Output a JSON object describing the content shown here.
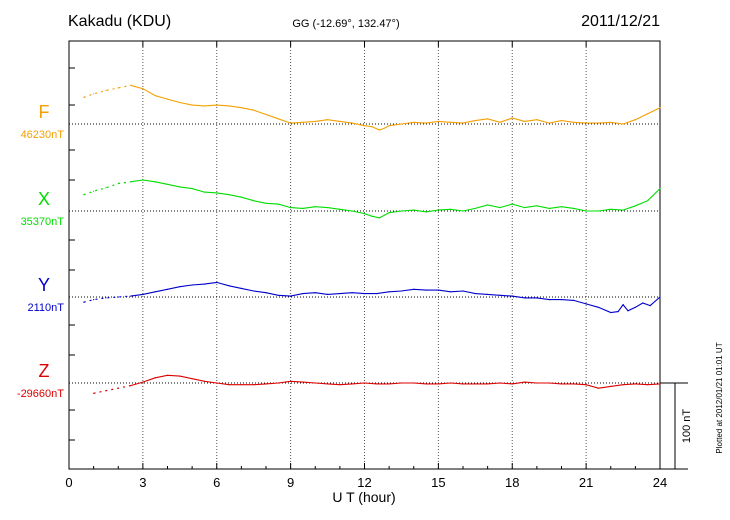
{
  "header": {
    "station": "Kakadu (KDU)",
    "coords": "GG (-12.69°, 132.47°)",
    "date": "2011/12/21"
  },
  "footer": {
    "plotted": "Plotted at 2012/01/21 01:01 UT"
  },
  "colors": {
    "F": "#f5a000",
    "X": "#00dd00",
    "Y": "#0000cc",
    "Z": "#dd0000",
    "axis": "#000000"
  },
  "chart_data": {
    "type": "line",
    "xlabel": "U T (hour)",
    "xlim": [
      0,
      24
    ],
    "x_ticks": [
      "0",
      "3",
      "6",
      "9",
      "12",
      "15",
      "18",
      "21",
      "24"
    ],
    "grid": "vertical dotted lines at every 3 hours; dotted baseline per component",
    "scale_bar": {
      "value": 100,
      "label": "100 nT"
    },
    "y_units": "nT offset from baseline",
    "series": [
      {
        "name": "F",
        "baseline_label": "46230nT",
        "x": [
          0.6,
          1.0,
          1.5,
          2.0,
          2.5,
          3.0,
          3.5,
          4.0,
          4.5,
          5.0,
          5.5,
          6.0,
          6.5,
          7.0,
          7.5,
          8.0,
          8.5,
          9.0,
          9.5,
          10.0,
          10.5,
          11.0,
          11.5,
          12.0,
          12.3,
          12.6,
          12.8,
          13.0,
          13.5,
          14.0,
          14.5,
          15.0,
          15.5,
          16.0,
          16.5,
          17.0,
          17.5,
          18.0,
          18.5,
          19.0,
          19.5,
          20.0,
          20.5,
          21.0,
          21.5,
          22.0,
          22.5,
          23.0,
          23.5,
          24.0
        ],
        "y": [
          31,
          35,
          39,
          42,
          45,
          41,
          33,
          29,
          25,
          22,
          21,
          22,
          21,
          19,
          16,
          11,
          6,
          1,
          2,
          3,
          5,
          3,
          1,
          -2,
          -3,
          -7,
          -5,
          -2,
          0,
          2,
          1,
          3,
          2,
          1,
          4,
          6,
          2,
          7,
          3,
          5,
          1,
          4,
          2,
          1,
          1,
          2,
          0,
          5,
          12,
          19
        ]
      },
      {
        "name": "X",
        "baseline_label": "35370nT",
        "x": [
          0.6,
          1.0,
          1.5,
          2.0,
          2.5,
          3.0,
          3.5,
          4.0,
          4.5,
          5.0,
          5.5,
          6.0,
          6.5,
          7.0,
          7.5,
          8.0,
          8.5,
          9.0,
          9.5,
          10.0,
          10.5,
          11.0,
          11.5,
          12.0,
          12.3,
          12.6,
          12.8,
          13.0,
          13.5,
          14.0,
          14.5,
          15.0,
          15.5,
          16.0,
          16.5,
          17.0,
          17.5,
          18.0,
          18.5,
          19.0,
          19.5,
          20.0,
          20.5,
          21.0,
          21.5,
          22.0,
          22.5,
          23.0,
          23.5,
          24.0
        ],
        "y": [
          19,
          23,
          27,
          32,
          34,
          36,
          34,
          31,
          28,
          26,
          22,
          21,
          19,
          16,
          12,
          9,
          8,
          4,
          3,
          5,
          4,
          2,
          0,
          -3,
          -6,
          -8,
          -5,
          -2,
          0,
          1,
          -1,
          1,
          2,
          0,
          3,
          7,
          4,
          8,
          4,
          6,
          3,
          5,
          3,
          0,
          0,
          2,
          1,
          6,
          12,
          26
        ]
      },
      {
        "name": "Y",
        "baseline_label": "2110nT",
        "x": [
          0.6,
          1.0,
          1.5,
          2.0,
          2.5,
          3.0,
          3.5,
          4.0,
          4.5,
          5.0,
          5.5,
          6.0,
          6.5,
          7.0,
          7.5,
          8.0,
          8.5,
          9.0,
          9.5,
          10.0,
          10.5,
          11.0,
          11.5,
          12.0,
          12.5,
          13.0,
          13.5,
          14.0,
          14.5,
          15.0,
          15.5,
          16.0,
          16.5,
          17.0,
          17.5,
          18.0,
          18.5,
          19.0,
          19.5,
          20.0,
          20.5,
          21.0,
          21.5,
          22.0,
          22.3,
          22.5,
          22.7,
          23.0,
          23.3,
          23.6,
          24.0
        ],
        "y": [
          -6,
          -3,
          -1,
          0,
          1,
          3,
          6,
          9,
          12,
          14,
          15,
          17,
          13,
          10,
          7,
          5,
          2,
          1,
          4,
          5,
          3,
          4,
          5,
          4,
          4,
          6,
          7,
          9,
          8,
          8,
          6,
          7,
          4,
          3,
          2,
          1,
          -1,
          -1,
          -3,
          -3,
          -4,
          -8,
          -12,
          -18,
          -17,
          -9,
          -16,
          -12,
          -7,
          -10,
          0
        ]
      },
      {
        "name": "Z",
        "baseline_label": "-29660nT",
        "x": [
          1.0,
          1.5,
          2.0,
          2.5,
          3.0,
          3.5,
          4.0,
          4.5,
          5.0,
          5.5,
          6.0,
          6.5,
          7.0,
          7.5,
          8.0,
          8.5,
          9.0,
          9.5,
          10.0,
          10.5,
          11.0,
          11.5,
          12.0,
          12.5,
          13.0,
          13.5,
          14.0,
          14.5,
          15.0,
          15.5,
          16.0,
          16.5,
          17.0,
          17.5,
          18.0,
          18.5,
          19.0,
          19.5,
          20.0,
          20.5,
          21.0,
          21.5,
          22.0,
          22.5,
          23.0,
          23.5,
          24.0
        ],
        "y": [
          -12,
          -9,
          -6,
          -3,
          1,
          6,
          9,
          8,
          5,
          2,
          0,
          -2,
          -2,
          -2,
          -1,
          0,
          2,
          1,
          0,
          -1,
          -2,
          -1,
          0,
          -1,
          -1,
          0,
          0,
          -1,
          -1,
          0,
          -1,
          -1,
          -1,
          0,
          -1,
          1,
          0,
          0,
          -1,
          -1,
          -2,
          -6,
          -4,
          -2,
          -1,
          -2,
          -1
        ]
      }
    ]
  }
}
